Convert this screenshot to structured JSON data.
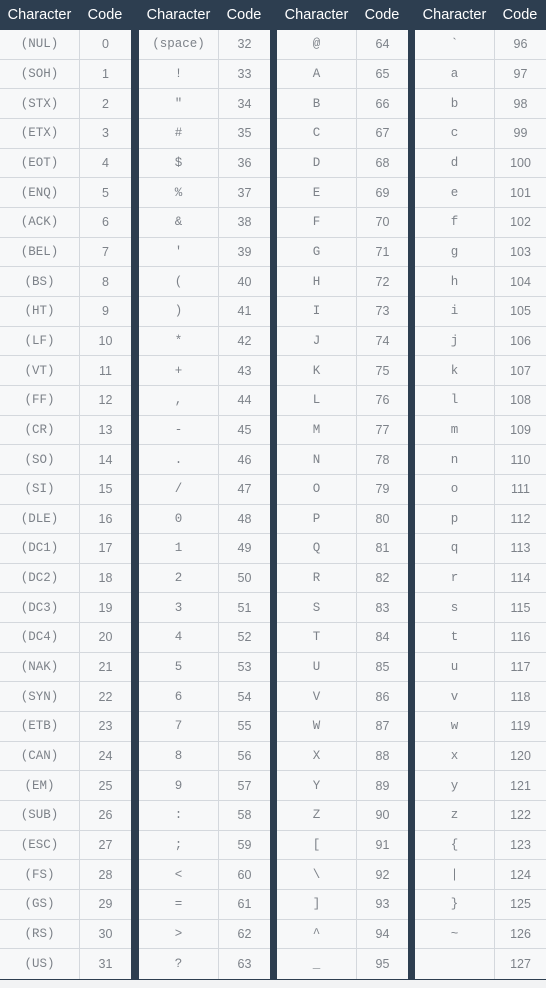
{
  "header": {
    "character_label": "Character",
    "code_label": "Code"
  },
  "groups": [
    {
      "rows": [
        {
          "ch": "(NUL)",
          "code": "0"
        },
        {
          "ch": "(SOH)",
          "code": "1"
        },
        {
          "ch": "(STX)",
          "code": "2"
        },
        {
          "ch": "(ETX)",
          "code": "3"
        },
        {
          "ch": "(EOT)",
          "code": "4"
        },
        {
          "ch": "(ENQ)",
          "code": "5"
        },
        {
          "ch": "(ACK)",
          "code": "6"
        },
        {
          "ch": "(BEL)",
          "code": "7"
        },
        {
          "ch": "(BS)",
          "code": "8"
        },
        {
          "ch": "(HT)",
          "code": "9"
        },
        {
          "ch": "(LF)",
          "code": "10"
        },
        {
          "ch": "(VT)",
          "code": "11"
        },
        {
          "ch": "(FF)",
          "code": "12"
        },
        {
          "ch": "(CR)",
          "code": "13"
        },
        {
          "ch": "(SO)",
          "code": "14"
        },
        {
          "ch": "(SI)",
          "code": "15"
        },
        {
          "ch": "(DLE)",
          "code": "16"
        },
        {
          "ch": "(DC1)",
          "code": "17"
        },
        {
          "ch": "(DC2)",
          "code": "18"
        },
        {
          "ch": "(DC3)",
          "code": "19"
        },
        {
          "ch": "(DC4)",
          "code": "20"
        },
        {
          "ch": "(NAK)",
          "code": "21"
        },
        {
          "ch": "(SYN)",
          "code": "22"
        },
        {
          "ch": "(ETB)",
          "code": "23"
        },
        {
          "ch": "(CAN)",
          "code": "24"
        },
        {
          "ch": "(EM)",
          "code": "25"
        },
        {
          "ch": "(SUB)",
          "code": "26"
        },
        {
          "ch": "(ESC)",
          "code": "27"
        },
        {
          "ch": "(FS)",
          "code": "28"
        },
        {
          "ch": "(GS)",
          "code": "29"
        },
        {
          "ch": "(RS)",
          "code": "30"
        },
        {
          "ch": "(US)",
          "code": "31"
        }
      ]
    },
    {
      "rows": [
        {
          "ch": "(space)",
          "code": "32"
        },
        {
          "ch": "!",
          "code": "33"
        },
        {
          "ch": "\"",
          "code": "34"
        },
        {
          "ch": "#",
          "code": "35"
        },
        {
          "ch": "$",
          "code": "36"
        },
        {
          "ch": "%",
          "code": "37"
        },
        {
          "ch": "&",
          "code": "38"
        },
        {
          "ch": "'",
          "code": "39"
        },
        {
          "ch": "(",
          "code": "40"
        },
        {
          "ch": ")",
          "code": "41"
        },
        {
          "ch": "*",
          "code": "42"
        },
        {
          "ch": "+",
          "code": "43"
        },
        {
          "ch": ",",
          "code": "44"
        },
        {
          "ch": "-",
          "code": "45"
        },
        {
          "ch": ".",
          "code": "46"
        },
        {
          "ch": "/",
          "code": "47"
        },
        {
          "ch": "0",
          "code": "48"
        },
        {
          "ch": "1",
          "code": "49"
        },
        {
          "ch": "2",
          "code": "50"
        },
        {
          "ch": "3",
          "code": "51"
        },
        {
          "ch": "4",
          "code": "52"
        },
        {
          "ch": "5",
          "code": "53"
        },
        {
          "ch": "6",
          "code": "54"
        },
        {
          "ch": "7",
          "code": "55"
        },
        {
          "ch": "8",
          "code": "56"
        },
        {
          "ch": "9",
          "code": "57"
        },
        {
          "ch": ":",
          "code": "58"
        },
        {
          "ch": ";",
          "code": "59"
        },
        {
          "ch": "<",
          "code": "60"
        },
        {
          "ch": "=",
          "code": "61"
        },
        {
          "ch": ">",
          "code": "62"
        },
        {
          "ch": "?",
          "code": "63"
        }
      ]
    },
    {
      "rows": [
        {
          "ch": "@",
          "code": "64"
        },
        {
          "ch": "A",
          "code": "65"
        },
        {
          "ch": "B",
          "code": "66"
        },
        {
          "ch": "C",
          "code": "67"
        },
        {
          "ch": "D",
          "code": "68"
        },
        {
          "ch": "E",
          "code": "69"
        },
        {
          "ch": "F",
          "code": "70"
        },
        {
          "ch": "G",
          "code": "71"
        },
        {
          "ch": "H",
          "code": "72"
        },
        {
          "ch": "I",
          "code": "73"
        },
        {
          "ch": "J",
          "code": "74"
        },
        {
          "ch": "K",
          "code": "75"
        },
        {
          "ch": "L",
          "code": "76"
        },
        {
          "ch": "M",
          "code": "77"
        },
        {
          "ch": "N",
          "code": "78"
        },
        {
          "ch": "O",
          "code": "79"
        },
        {
          "ch": "P",
          "code": "80"
        },
        {
          "ch": "Q",
          "code": "81"
        },
        {
          "ch": "R",
          "code": "82"
        },
        {
          "ch": "S",
          "code": "83"
        },
        {
          "ch": "T",
          "code": "84"
        },
        {
          "ch": "U",
          "code": "85"
        },
        {
          "ch": "V",
          "code": "86"
        },
        {
          "ch": "W",
          "code": "87"
        },
        {
          "ch": "X",
          "code": "88"
        },
        {
          "ch": "Y",
          "code": "89"
        },
        {
          "ch": "Z",
          "code": "90"
        },
        {
          "ch": "[",
          "code": "91"
        },
        {
          "ch": "\\",
          "code": "92"
        },
        {
          "ch": "]",
          "code": "93"
        },
        {
          "ch": "^",
          "code": "94"
        },
        {
          "ch": "_",
          "code": "95"
        }
      ]
    },
    {
      "rows": [
        {
          "ch": "`",
          "code": "96"
        },
        {
          "ch": "a",
          "code": "97"
        },
        {
          "ch": "b",
          "code": "98"
        },
        {
          "ch": "c",
          "code": "99"
        },
        {
          "ch": "d",
          "code": "100"
        },
        {
          "ch": "e",
          "code": "101"
        },
        {
          "ch": "f",
          "code": "102"
        },
        {
          "ch": "g",
          "code": "103"
        },
        {
          "ch": "h",
          "code": "104"
        },
        {
          "ch": "i",
          "code": "105"
        },
        {
          "ch": "j",
          "code": "106"
        },
        {
          "ch": "k",
          "code": "107"
        },
        {
          "ch": "l",
          "code": "108"
        },
        {
          "ch": "m",
          "code": "109"
        },
        {
          "ch": "n",
          "code": "110"
        },
        {
          "ch": "o",
          "code": "111"
        },
        {
          "ch": "p",
          "code": "112"
        },
        {
          "ch": "q",
          "code": "113"
        },
        {
          "ch": "r",
          "code": "114"
        },
        {
          "ch": "s",
          "code": "115"
        },
        {
          "ch": "t",
          "code": "116"
        },
        {
          "ch": "u",
          "code": "117"
        },
        {
          "ch": "v",
          "code": "118"
        },
        {
          "ch": "w",
          "code": "119"
        },
        {
          "ch": "x",
          "code": "120"
        },
        {
          "ch": "y",
          "code": "121"
        },
        {
          "ch": "z",
          "code": "122"
        },
        {
          "ch": "{",
          "code": "123"
        },
        {
          "ch": "|",
          "code": "124"
        },
        {
          "ch": "}",
          "code": "125"
        },
        {
          "ch": "~",
          "code": "126"
        },
        {
          "ch": "",
          "code": "127"
        }
      ]
    }
  ]
}
